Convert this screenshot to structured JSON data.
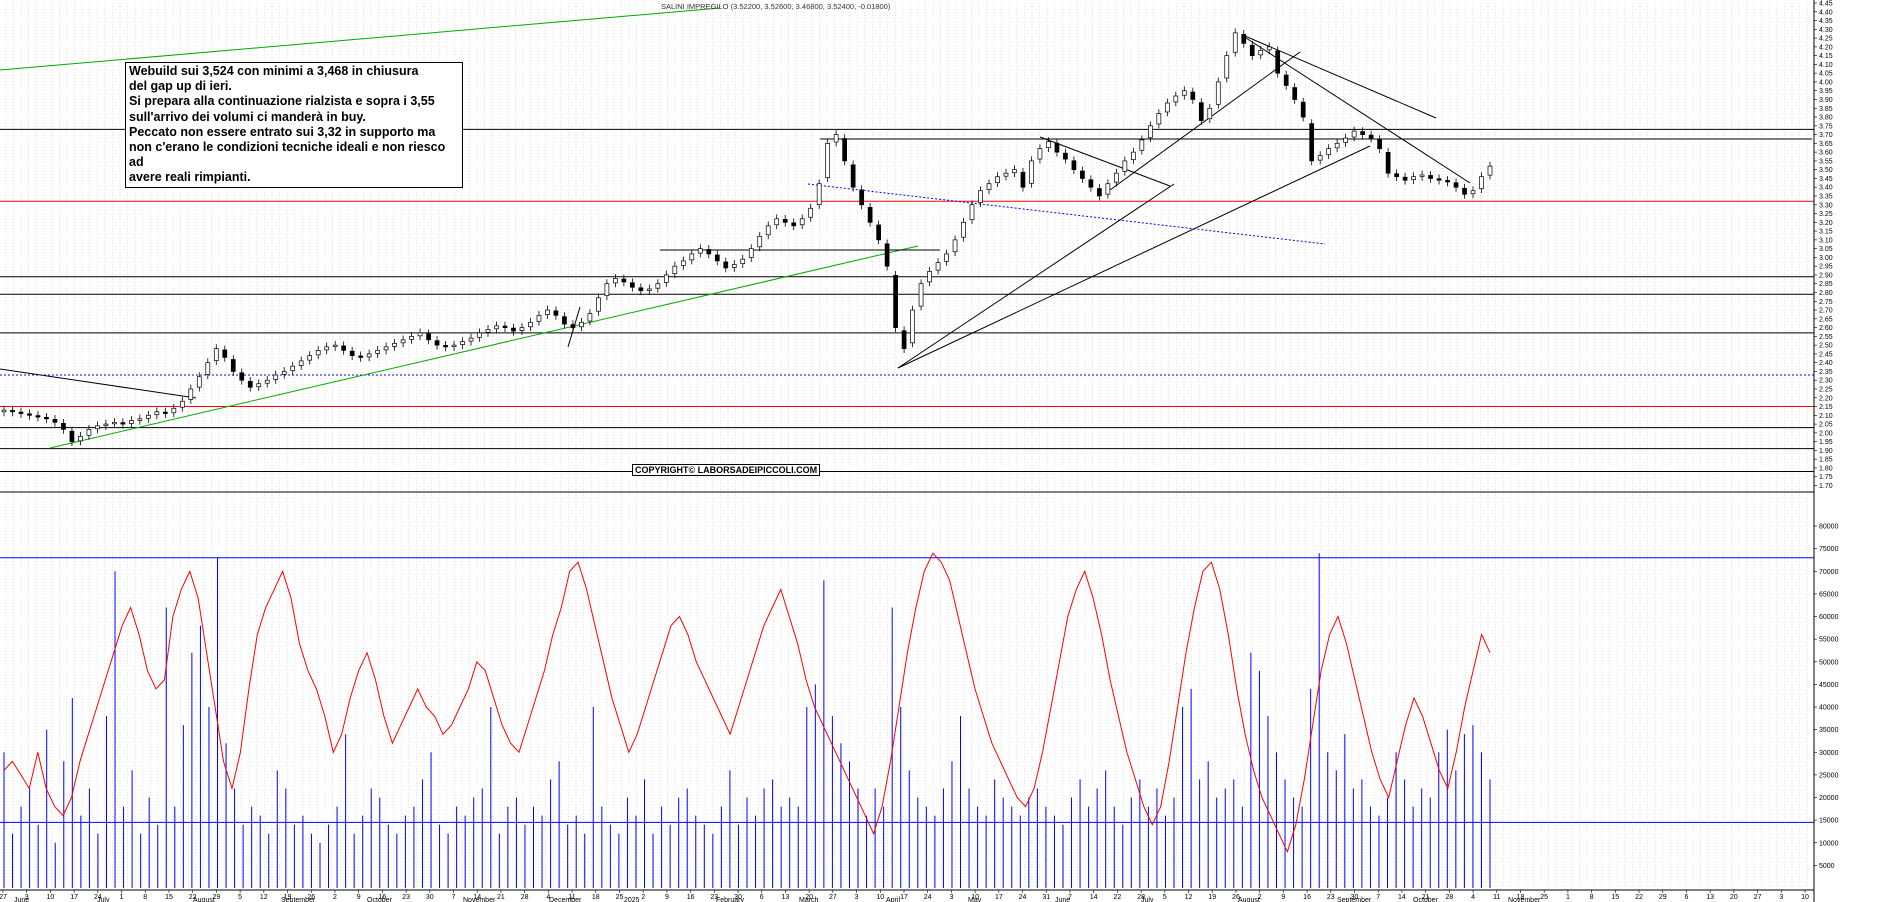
{
  "header": {
    "symbol": "SALINI IMPREGILO",
    "ohlc": "(3.52200, 3.52600, 3.46800, 3.52400, -0.01800)"
  },
  "note_text": "Webuild sui 3,524 con minimi a 3,468 in chiusura\ndel gap up di ieri.\nSi prepara alla continuazione rialzista e sopra i 3,55\nsull'arrivo dei volumi ci manderà in buy.\nPeccato non essere entrato sui 3,32 in supporto ma\nnon c'erano le condizioni tecniche ideali e non riesco ad\navere reali rimpianti.",
  "copyright": "COPYRIGHT© LABORSADEIPICCOLI.COM",
  "colors": {
    "candle": "#000000",
    "support_red": "#ff0000",
    "trend_green": "#00aa00",
    "dotted_blue": "#0000ff",
    "volume_bars": "#0000ff",
    "oscillator": "#ff0000",
    "grid": "#c8c8c8"
  },
  "chart_data": [
    {
      "type": "candlestick",
      "title": "SALINI IMPREGILO",
      "ylim": [
        1.68,
        4.45
      ],
      "price_ticks": [
        "4.45",
        "4.40",
        "4.35",
        "4.30",
        "4.25",
        "4.20",
        "4.15",
        "4.10",
        "4.05",
        "4.00",
        "3.95",
        "3.90",
        "3.85",
        "3.80",
        "3.75",
        "3.70",
        "3.65",
        "3.60",
        "3.55",
        "3.50",
        "3.45",
        "3.40",
        "3.35",
        "3.30",
        "3.25",
        "3.20",
        "3.15",
        "3.10",
        "3.05",
        "3.00",
        "2.95",
        "2.90",
        "2.85",
        "2.80",
        "2.75",
        "2.70",
        "2.65",
        "2.60",
        "2.55",
        "2.50",
        "2.45",
        "2.40",
        "2.35",
        "2.30",
        "2.25",
        "2.20",
        "2.15",
        "2.10",
        "2.05",
        "2.00",
        "1.95",
        "1.90",
        "1.85",
        "1.80",
        "1.75",
        "1.70"
      ],
      "x_months": [
        "June",
        "July",
        "August",
        "September",
        "October",
        "November",
        "December",
        "2025",
        "February",
        "March",
        "April",
        "May",
        "June",
        "July",
        "August",
        "September",
        "October",
        "November"
      ],
      "x_day_ticks": [
        "27",
        "3",
        "10",
        "17",
        "24",
        "1",
        "8",
        "15",
        "22",
        "29",
        "5",
        "12",
        "19",
        "26",
        "2",
        "9",
        "16",
        "23",
        "30",
        "7",
        "14",
        "21",
        "28",
        "4",
        "11",
        "18",
        "25",
        "2",
        "9",
        "16",
        "23",
        "30",
        "6",
        "13",
        "20",
        "27",
        "3",
        "10",
        "17",
        "24",
        "3",
        "10",
        "17",
        "24",
        "31",
        "7",
        "14",
        "22",
        "28",
        "5",
        "12",
        "19",
        "26",
        "2",
        "9",
        "16",
        "23",
        "30",
        "7",
        "14",
        "21",
        "28",
        "4",
        "11",
        "18",
        "25",
        "1",
        "8",
        "15",
        "22",
        "29",
        "6",
        "13",
        "20",
        "27",
        "3",
        "10"
      ],
      "closes": [
        2.13,
        2.12,
        2.11,
        2.1,
        2.09,
        2.08,
        2.06,
        2.02,
        1.95,
        1.98,
        2.02,
        2.04,
        2.05,
        2.06,
        2.05,
        2.07,
        2.08,
        2.1,
        2.12,
        2.11,
        2.14,
        2.18,
        2.25,
        2.32,
        2.4,
        2.48,
        2.43,
        2.35,
        2.3,
        2.26,
        2.28,
        2.3,
        2.33,
        2.35,
        2.38,
        2.41,
        2.44,
        2.47,
        2.49,
        2.5,
        2.47,
        2.44,
        2.43,
        2.45,
        2.47,
        2.49,
        2.51,
        2.53,
        2.55,
        2.57,
        2.53,
        2.5,
        2.49,
        2.5,
        2.52,
        2.54,
        2.57,
        2.59,
        2.61,
        2.6,
        2.58,
        2.6,
        2.63,
        2.67,
        2.7,
        2.67,
        2.62,
        2.6,
        2.63,
        2.68,
        2.77,
        2.85,
        2.88,
        2.86,
        2.83,
        2.81,
        2.82,
        2.85,
        2.9,
        2.95,
        2.98,
        3.02,
        3.05,
        3.02,
        2.98,
        2.94,
        2.96,
        2.99,
        3.05,
        3.12,
        3.18,
        3.22,
        3.2,
        3.18,
        3.22,
        3.28,
        3.42,
        3.65,
        3.7,
        3.55,
        3.4,
        3.3,
        3.2,
        3.1,
        2.95,
        2.6,
        2.48,
        2.7,
        2.85,
        2.92,
        2.97,
        3.02,
        3.1,
        3.2,
        3.3,
        3.38,
        3.42,
        3.46,
        3.48,
        3.5,
        3.4,
        3.55,
        3.62,
        3.66,
        3.6,
        3.56,
        3.5,
        3.45,
        3.4,
        3.35,
        3.42,
        3.48,
        3.55,
        3.6,
        3.67,
        3.75,
        3.82,
        3.88,
        3.92,
        3.95,
        3.9,
        3.78,
        3.85,
        4.0,
        4.15,
        4.28,
        4.22,
        4.15,
        4.18,
        4.2,
        4.05,
        3.98,
        3.9,
        3.8,
        3.55,
        3.58,
        3.62,
        3.65,
        3.68,
        3.72,
        3.7,
        3.68,
        3.62,
        3.48,
        3.46,
        3.44,
        3.46,
        3.47,
        3.45,
        3.44,
        3.43,
        3.4,
        3.36,
        3.38,
        3.46,
        3.52
      ],
      "hlines": [
        {
          "price": 3.73,
          "color": "#000000"
        },
        {
          "price": 3.32,
          "color": "#ff0000"
        },
        {
          "price": 2.89,
          "color": "#000000"
        },
        {
          "price": 2.79,
          "color": "#000000"
        },
        {
          "price": 2.57,
          "color": "#000000"
        },
        {
          "price": 2.33,
          "color": "#0000ff",
          "style": "dotted"
        },
        {
          "price": 2.15,
          "color": "#ff0000"
        },
        {
          "price": 2.03,
          "color": "#000000"
        },
        {
          "price": 1.91,
          "color": "#000000"
        },
        {
          "price": 1.78,
          "color": "#000000"
        }
      ]
    },
    {
      "type": "bar+line",
      "series": [
        {
          "values_note": "volume"
        },
        {
          "values_note": "oscillator"
        }
      ],
      "ylim": [
        0,
        82000
      ],
      "vol_ticks": [
        "80000",
        "75000",
        "70000",
        "65000",
        "60000",
        "55000",
        "50000",
        "45000",
        "40000",
        "35000",
        "30000",
        "25000",
        "20000",
        "15000",
        "10000",
        "5000"
      ],
      "hlines": [
        73000,
        14500
      ],
      "volume": [
        30,
        12,
        18,
        22,
        14,
        35,
        10,
        28,
        42,
        16,
        22,
        12,
        38,
        70,
        18,
        26,
        12,
        20,
        14,
        62,
        18,
        36,
        52,
        58,
        40,
        73,
        32,
        22,
        14,
        18,
        16,
        12,
        26,
        22,
        14,
        16,
        12,
        10,
        14,
        18,
        34,
        12,
        16,
        22,
        20,
        14,
        12,
        16,
        18,
        24,
        30,
        14,
        12,
        18,
        16,
        20,
        22,
        40,
        12,
        18,
        20,
        14,
        18,
        16,
        24,
        28,
        14,
        16,
        12,
        40,
        18,
        14,
        12,
        20,
        16,
        24,
        12,
        18,
        14,
        20,
        22,
        16,
        14,
        12,
        18,
        26,
        14,
        20,
        16,
        22,
        24,
        18,
        20,
        18,
        40,
        45,
        68,
        38,
        32,
        28,
        22,
        16,
        22,
        18,
        62,
        40,
        26,
        20,
        18,
        16,
        22,
        28,
        38,
        22,
        18,
        16,
        24,
        20,
        18,
        16,
        20,
        22,
        18,
        16,
        14,
        20,
        24,
        18,
        22,
        26,
        18,
        14,
        20,
        24,
        18,
        22,
        16,
        20,
        40,
        44,
        24,
        28,
        20,
        22,
        24,
        18,
        52,
        48,
        38,
        30,
        24,
        20,
        18,
        44,
        74,
        30,
        26,
        34,
        22,
        24,
        18,
        16,
        20,
        30,
        24,
        18,
        22,
        20,
        30,
        35,
        26,
        34,
        36,
        30,
        24
      ],
      "oscillator": [
        26,
        28,
        25,
        22,
        30,
        22,
        18,
        16,
        20,
        28,
        34,
        40,
        46,
        52,
        58,
        62,
        56,
        48,
        44,
        46,
        60,
        66,
        70,
        64,
        52,
        40,
        28,
        22,
        30,
        44,
        56,
        62,
        66,
        70,
        64,
        54,
        48,
        44,
        38,
        30,
        34,
        42,
        48,
        52,
        46,
        38,
        32,
        36,
        40,
        44,
        40,
        38,
        34,
        36,
        40,
        44,
        50,
        48,
        42,
        36,
        32,
        30,
        36,
        42,
        48,
        56,
        62,
        70,
        72,
        66,
        58,
        50,
        42,
        36,
        30,
        34,
        40,
        46,
        52,
        58,
        60,
        56,
        50,
        46,
        42,
        38,
        34,
        40,
        46,
        52,
        58,
        62,
        66,
        60,
        54,
        46,
        40,
        36,
        32,
        28,
        24,
        20,
        16,
        12,
        18,
        28,
        40,
        52,
        62,
        70,
        74,
        72,
        68,
        60,
        52,
        44,
        38,
        32,
        28,
        24,
        20,
        18,
        22,
        30,
        40,
        50,
        60,
        66,
        70,
        64,
        56,
        46,
        38,
        30,
        24,
        18,
        14,
        18,
        28,
        40,
        52,
        62,
        70,
        72,
        66,
        56,
        44,
        34,
        26,
        20,
        16,
        12,
        8,
        14,
        24,
        36,
        48,
        56,
        60,
        54,
        46,
        38,
        30,
        24,
        20,
        28,
        36,
        42,
        38,
        32,
        26,
        22,
        30,
        40,
        48,
        56,
        52
      ]
    }
  ]
}
